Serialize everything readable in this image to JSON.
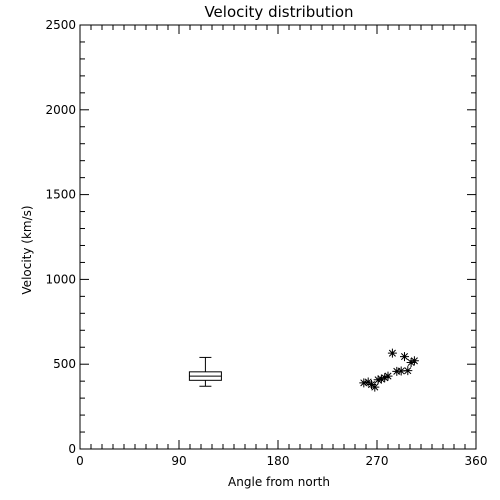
{
  "chart_data": {
    "type": "scatter",
    "title": "Velocity distribution",
    "xlabel": "Angle from north",
    "ylabel": "Velocity (km/s)",
    "xlim": [
      0,
      360
    ],
    "ylim": [
      0,
      2500
    ],
    "x_ticks": [
      0,
      90,
      180,
      270,
      360
    ],
    "y_ticks": [
      0,
      500,
      1000,
      1500,
      2000,
      2500
    ],
    "x_minor_step": 10,
    "y_minor_step": 100,
    "grid": false,
    "boxplot": {
      "x": 114,
      "min": 370,
      "q1": 405,
      "median": 430,
      "q3": 455,
      "max": 540
    },
    "points": [
      {
        "x": 258,
        "y": 390
      },
      {
        "x": 262,
        "y": 395
      },
      {
        "x": 265,
        "y": 380
      },
      {
        "x": 268,
        "y": 365
      },
      {
        "x": 271,
        "y": 408
      },
      {
        "x": 274,
        "y": 412
      },
      {
        "x": 277,
        "y": 420
      },
      {
        "x": 280,
        "y": 430
      },
      {
        "x": 284,
        "y": 565
      },
      {
        "x": 288,
        "y": 458
      },
      {
        "x": 292,
        "y": 460
      },
      {
        "x": 295,
        "y": 545
      },
      {
        "x": 298,
        "y": 462
      },
      {
        "x": 301,
        "y": 510
      },
      {
        "x": 304,
        "y": 520
      }
    ],
    "marker": "asterisk",
    "color": "#000000"
  }
}
